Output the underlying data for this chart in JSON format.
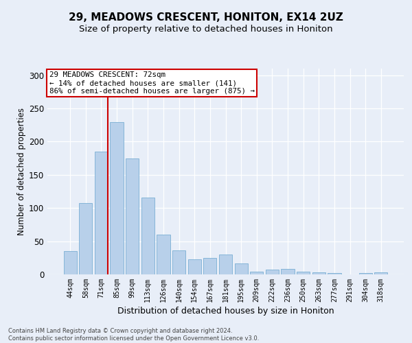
{
  "title": "29, MEADOWS CRESCENT, HONITON, EX14 2UZ",
  "subtitle": "Size of property relative to detached houses in Honiton",
  "xlabel": "Distribution of detached houses by size in Honiton",
  "ylabel": "Number of detached properties",
  "categories": [
    "44sqm",
    "58sqm",
    "71sqm",
    "85sqm",
    "99sqm",
    "113sqm",
    "126sqm",
    "140sqm",
    "154sqm",
    "167sqm",
    "181sqm",
    "195sqm",
    "209sqm",
    "222sqm",
    "236sqm",
    "250sqm",
    "263sqm",
    "277sqm",
    "291sqm",
    "304sqm",
    "318sqm"
  ],
  "values": [
    35,
    107,
    185,
    229,
    175,
    116,
    60,
    36,
    23,
    25,
    30,
    17,
    4,
    7,
    8,
    4,
    3,
    2,
    0,
    2,
    3
  ],
  "bar_color": "#b8d0ea",
  "bar_edge_color": "#7aafd4",
  "vline_color": "#cc0000",
  "annotation_text": "29 MEADOWS CRESCENT: 72sqm\n← 14% of detached houses are smaller (141)\n86% of semi-detached houses are larger (875) →",
  "annotation_box_color": "white",
  "annotation_box_edge": "#cc0000",
  "ylim": [
    0,
    310
  ],
  "yticks": [
    0,
    50,
    100,
    150,
    200,
    250,
    300
  ],
  "title_fontsize": 11,
  "subtitle_fontsize": 9.5,
  "xlabel_fontsize": 9,
  "ylabel_fontsize": 8.5,
  "footer_text": "Contains HM Land Registry data © Crown copyright and database right 2024.\nContains public sector information licensed under the Open Government Licence v3.0.",
  "background_color": "#e8eef8",
  "plot_bg_color": "#e8eef8",
  "grid_color": "#ffffff"
}
